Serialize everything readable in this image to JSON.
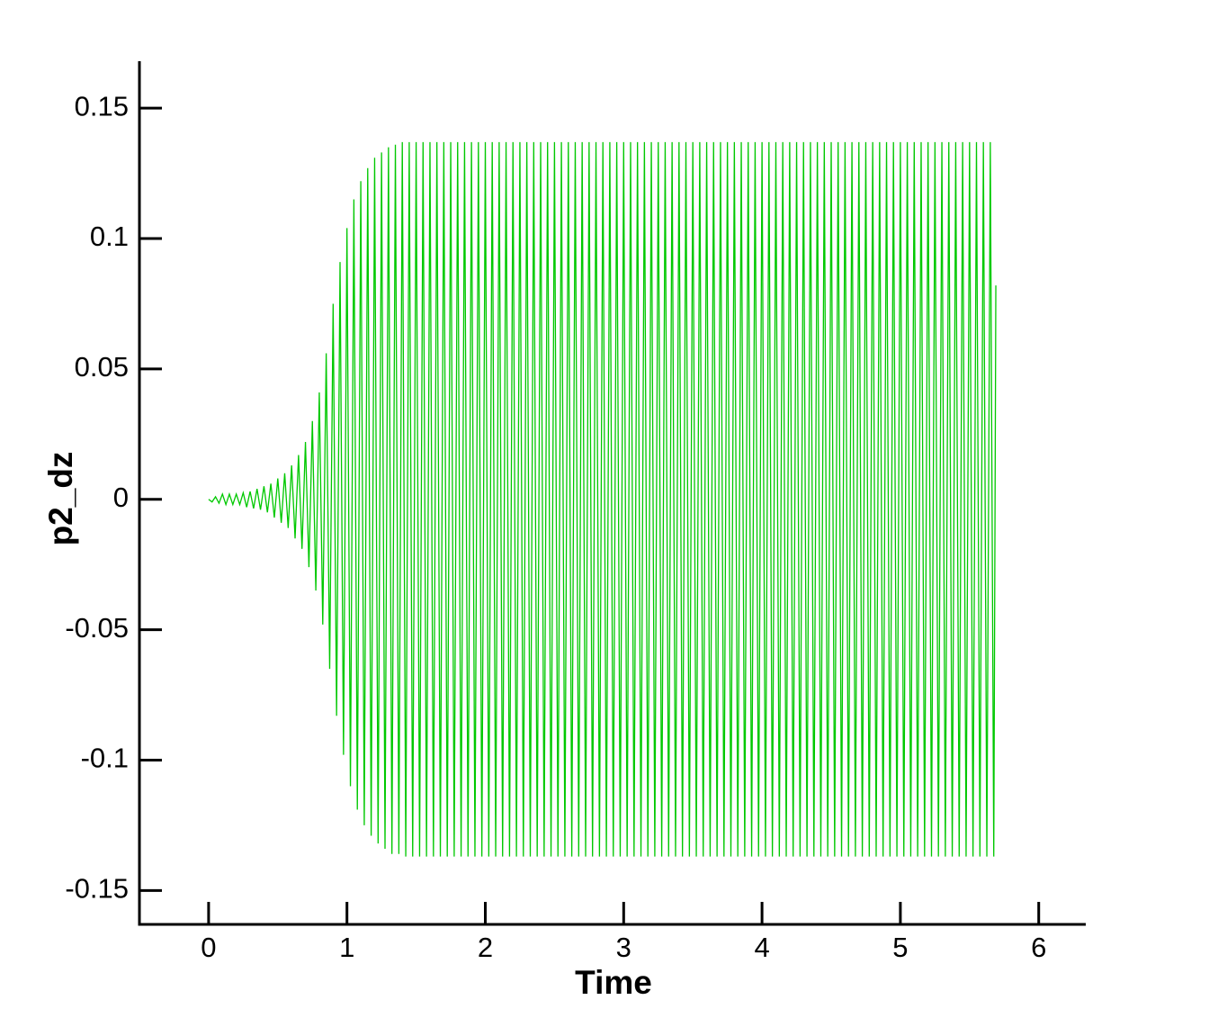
{
  "chart_data": {
    "type": "line",
    "x_label": "Time",
    "y_label": "p2_dz",
    "xlim": [
      -0.5,
      6.34
    ],
    "ylim": [
      -0.163,
      0.168
    ],
    "xticks": [
      0,
      1,
      2,
      3,
      4,
      5,
      6
    ],
    "yticks": [
      0.15,
      0.1,
      0.05,
      0,
      -0.05,
      -0.1,
      -0.15
    ],
    "series": [
      {
        "color": "#00c800",
        "x": [
          0,
          0.025,
          0.05,
          0.075,
          0.1,
          0.125,
          0.15,
          0.175,
          0.2,
          0.225,
          0.25,
          0.275,
          0.3,
          0.325,
          0.35,
          0.375,
          0.4,
          0.425,
          0.45,
          0.475,
          0.5,
          0.525,
          0.55,
          0.575,
          0.6,
          0.625,
          0.65,
          0.675,
          0.7,
          0.725,
          0.75,
          0.775,
          0.8,
          0.825,
          0.85,
          0.875,
          0.9,
          0.925,
          0.95,
          0.975,
          1,
          1.025,
          1.05,
          1.075,
          1.1,
          1.125,
          1.15,
          1.175,
          1.2,
          1.225,
          1.25,
          1.275,
          1.3,
          1.325,
          1.35,
          1.375,
          1.4,
          1.425,
          1.45,
          1.475,
          1.5,
          1.525,
          1.55,
          1.575,
          1.6,
          1.625,
          1.65,
          1.675,
          1.7,
          1.725,
          1.75,
          1.775,
          1.8,
          1.825,
          1.85,
          1.875,
          1.9,
          1.925,
          1.95,
          1.975,
          2,
          2.025,
          2.05,
          2.075,
          2.1,
          2.125,
          2.15,
          2.175,
          2.2,
          2.225,
          2.25,
          2.275,
          2.3,
          2.325,
          2.35,
          2.375,
          2.4,
          2.425,
          2.45,
          2.475,
          2.5,
          2.525,
          2.55,
          2.575,
          2.6,
          2.625,
          2.65,
          2.675,
          2.7,
          2.725,
          2.75,
          2.775,
          2.8,
          2.825,
          2.85,
          2.875,
          2.9,
          2.925,
          2.95,
          2.975,
          3,
          3.025,
          3.05,
          3.075,
          3.1,
          3.125,
          3.15,
          3.175,
          3.2,
          3.225,
          3.25,
          3.275,
          3.3,
          3.325,
          3.35,
          3.375,
          3.4,
          3.425,
          3.45,
          3.475,
          3.5,
          3.525,
          3.55,
          3.575,
          3.6,
          3.625,
          3.65,
          3.675,
          3.7,
          3.725,
          3.75,
          3.775,
          3.8,
          3.825,
          3.85,
          3.875,
          3.9,
          3.925,
          3.95,
          3.975,
          4,
          4.025,
          4.05,
          4.075,
          4.1,
          4.125,
          4.15,
          4.175,
          4.2,
          4.225,
          4.25,
          4.275,
          4.3,
          4.325,
          4.35,
          4.375,
          4.4,
          4.425,
          4.45,
          4.475,
          4.5,
          4.525,
          4.55,
          4.575,
          4.6,
          4.625,
          4.65,
          4.675,
          4.7,
          4.725,
          4.75,
          4.775,
          4.8,
          4.825,
          4.85,
          4.875,
          4.9,
          4.925,
          4.95,
          4.975,
          5,
          5.025,
          5.05,
          5.075,
          5.1,
          5.125,
          5.15,
          5.175,
          5.2,
          5.225,
          5.25,
          5.275,
          5.3,
          5.325,
          5.35,
          5.375,
          5.4,
          5.425,
          5.45,
          5.475,
          5.5,
          5.525,
          5.55,
          5.575,
          5.6,
          5.625,
          5.65,
          5.675,
          5.69
        ],
        "values": [
          0,
          -0.001,
          0.001,
          -0.0015,
          0.002,
          -0.002,
          0.002,
          -0.002,
          0.002,
          -0.002,
          0.0025,
          -0.003,
          0.003,
          -0.0035,
          0.004,
          -0.004,
          0.005,
          -0.005,
          0.006,
          -0.007,
          0.008,
          -0.009,
          0.01,
          -0.011,
          0.013,
          -0.015,
          0.017,
          -0.019,
          0.022,
          -0.026,
          0.03,
          -0.035,
          0.041,
          -0.048,
          0.056,
          -0.065,
          0.075,
          -0.083,
          0.091,
          -0.098,
          0.104,
          -0.11,
          0.115,
          -0.119,
          0.122,
          -0.125,
          0.127,
          -0.129,
          0.131,
          -0.132,
          0.133,
          -0.134,
          0.135,
          -0.136,
          0.136,
          -0.136,
          0.137,
          -0.137,
          0.137,
          -0.137,
          0.137,
          -0.137,
          0.137,
          -0.137,
          0.137,
          -0.137,
          0.137,
          -0.137,
          0.137,
          -0.137,
          0.137,
          -0.137,
          0.137,
          -0.137,
          0.137,
          -0.137,
          0.137,
          -0.137,
          0.137,
          -0.137,
          0.137,
          -0.137,
          0.137,
          -0.137,
          0.137,
          -0.137,
          0.137,
          -0.137,
          0.137,
          -0.137,
          0.137,
          -0.137,
          0.137,
          -0.137,
          0.137,
          -0.137,
          0.137,
          -0.137,
          0.137,
          -0.137,
          0.137,
          -0.137,
          0.137,
          -0.137,
          0.137,
          -0.137,
          0.137,
          -0.137,
          0.137,
          -0.137,
          0.137,
          -0.137,
          0.137,
          -0.137,
          0.137,
          -0.137,
          0.137,
          -0.137,
          0.137,
          -0.137,
          0.137,
          -0.137,
          0.137,
          -0.137,
          0.137,
          -0.137,
          0.137,
          -0.137,
          0.137,
          -0.137,
          0.137,
          -0.137,
          0.137,
          -0.137,
          0.137,
          -0.137,
          0.137,
          -0.137,
          0.137,
          -0.137,
          0.137,
          -0.137,
          0.137,
          -0.137,
          0.137,
          -0.137,
          0.137,
          -0.137,
          0.137,
          -0.137,
          0.137,
          -0.137,
          0.137,
          -0.137,
          0.137,
          -0.137,
          0.137,
          -0.137,
          0.137,
          -0.137,
          0.137,
          -0.137,
          0.137,
          -0.137,
          0.137,
          -0.137,
          0.137,
          -0.137,
          0.137,
          -0.137,
          0.137,
          -0.137,
          0.137,
          -0.137,
          0.137,
          -0.137,
          0.137,
          -0.137,
          0.137,
          -0.137,
          0.137,
          -0.137,
          0.137,
          -0.137,
          0.137,
          -0.137,
          0.137,
          -0.137,
          0.137,
          -0.137,
          0.137,
          -0.137,
          0.137,
          -0.137,
          0.137,
          -0.137,
          0.137,
          -0.137,
          0.137,
          -0.137,
          0.137,
          -0.137,
          0.137,
          -0.137,
          0.137,
          -0.137,
          0.137,
          -0.137,
          0.137,
          -0.137,
          0.137,
          -0.137,
          0.137,
          -0.137,
          0.137,
          -0.137,
          0.137,
          -0.137,
          0.137,
          -0.137,
          0.137,
          -0.137,
          0.137,
          -0.137,
          0.137,
          -0.137,
          0.137,
          -0.137,
          0.082
        ]
      }
    ]
  }
}
